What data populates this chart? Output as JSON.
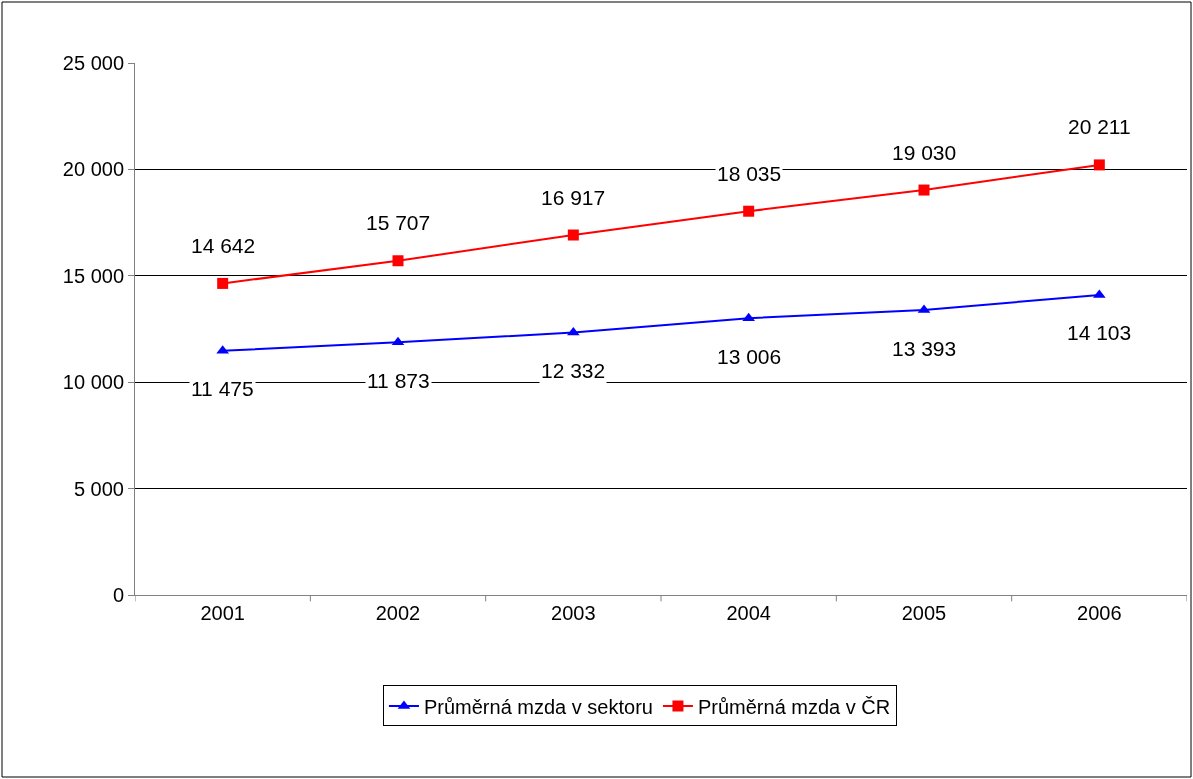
{
  "chart_data": {
    "type": "line",
    "categories": [
      "2001",
      "2002",
      "2003",
      "2004",
      "2005",
      "2006"
    ],
    "series": [
      {
        "name": "Průměrná mzda v sektoru",
        "color": "#0000ff",
        "marker": "triangle",
        "values": [
          11475,
          11873,
          12332,
          13006,
          13393,
          14103
        ],
        "value_labels": [
          "11 475",
          "11 873",
          "12 332",
          "13 006",
          "13 393",
          "14 103"
        ]
      },
      {
        "name": "Průměrná mzda v ČR",
        "color": "#ff0000",
        "marker": "square",
        "values": [
          14642,
          15707,
          16917,
          18035,
          19030,
          20211
        ],
        "value_labels": [
          "14 642",
          "15 707",
          "16 917",
          "18 035",
          "19 030",
          "20 211"
        ]
      }
    ],
    "ylim": [
      0,
      25000
    ],
    "yticks": [
      {
        "value": 0,
        "label": "0"
      },
      {
        "value": 5000,
        "label": "5 000"
      },
      {
        "value": 10000,
        "label": "10 000"
      },
      {
        "value": 15000,
        "label": "15 000"
      },
      {
        "value": 20000,
        "label": "20 000"
      },
      {
        "value": 25000,
        "label": "25 000"
      }
    ],
    "grid": "y",
    "legend": "bottom",
    "line_style": "solid"
  }
}
